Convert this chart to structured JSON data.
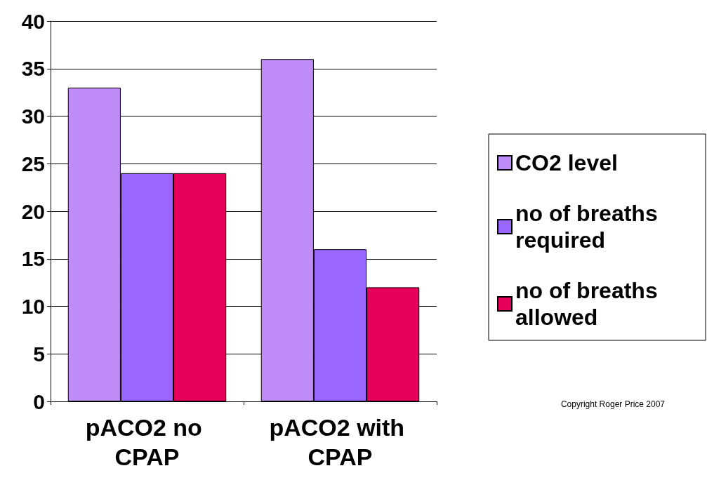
{
  "chart_data": {
    "type": "bar",
    "categories": [
      "pACO2 no CPAP",
      "pACO2 with CPAP"
    ],
    "series": [
      {
        "name": "CO2 level",
        "color": "#c08cf8",
        "values": [
          33,
          36
        ]
      },
      {
        "name": "no of breaths required",
        "color": "#9966ff",
        "values": [
          24,
          16
        ]
      },
      {
        "name": "no of breaths allowed",
        "color": "#e6005a",
        "values": [
          24,
          12
        ]
      }
    ],
    "ylim": [
      0,
      40
    ],
    "yticks": [
      0,
      5,
      10,
      15,
      20,
      25,
      30,
      35,
      40
    ],
    "grid": "y",
    "legend": "right",
    "annotations": [
      "Copyright Roger Price 2007"
    ]
  }
}
